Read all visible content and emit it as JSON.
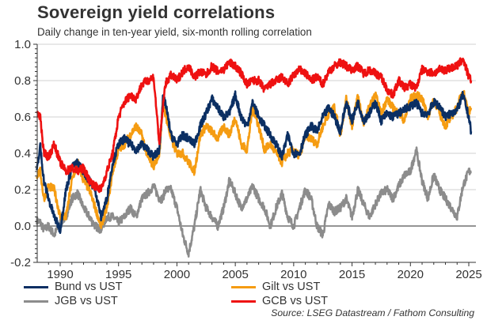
{
  "chart_data": {
    "type": "line",
    "title": "Sovereign yield correlations",
    "subtitle": "Daily change in ten-year yield, six-month rolling correlation",
    "xlabel": "",
    "ylabel": "",
    "xlim": [
      1988.0,
      2025.4
    ],
    "ylim": [
      -0.2,
      1.0
    ],
    "x_ticks": [
      1990,
      1995,
      2000,
      2005,
      2010,
      2015,
      2020,
      2025
    ],
    "y_ticks": [
      -0.2,
      0.0,
      0.2,
      0.4,
      0.6,
      0.8,
      1.0
    ],
    "y_tick_labels": [
      "-0.2",
      "0.0",
      "0.2",
      "0.4",
      "0.6",
      "0.8",
      "1.0"
    ],
    "grid": true,
    "legend_position": "bottom",
    "source": "Source: LSEG Datastream / Fathom Consulting",
    "x": [
      1988.0,
      1988.3,
      1988.6,
      1989.0,
      1989.5,
      1990.0,
      1990.5,
      1991.0,
      1991.5,
      1992.0,
      1992.5,
      1993.0,
      1993.5,
      1994.0,
      1994.5,
      1995.0,
      1995.5,
      1996.0,
      1996.5,
      1997.0,
      1997.5,
      1998.0,
      1998.5,
      1998.8,
      1999.0,
      1999.5,
      2000.0,
      2000.5,
      2001.0,
      2001.5,
      2002.0,
      2002.5,
      2003.0,
      2003.5,
      2004.0,
      2004.5,
      2005.0,
      2005.5,
      2006.0,
      2006.5,
      2007.0,
      2007.5,
      2008.0,
      2008.5,
      2009.0,
      2009.5,
      2010.0,
      2010.5,
      2011.0,
      2011.5,
      2012.0,
      2012.5,
      2013.0,
      2013.5,
      2014.0,
      2014.5,
      2015.0,
      2015.5,
      2016.0,
      2016.5,
      2017.0,
      2017.5,
      2018.0,
      2018.5,
      2019.0,
      2019.5,
      2020.0,
      2020.5,
      2021.0,
      2021.5,
      2022.0,
      2022.5,
      2023.0,
      2023.5,
      2024.0,
      2024.5,
      2025.0,
      2025.2
    ],
    "series": [
      {
        "name": "Bund vs UST",
        "color": "#0b2f63",
        "values": [
          0.3,
          0.44,
          0.25,
          0.15,
          0.05,
          -0.02,
          0.2,
          0.32,
          0.35,
          0.3,
          0.25,
          0.2,
          0.05,
          0.15,
          0.35,
          0.45,
          0.48,
          0.45,
          0.42,
          0.45,
          0.42,
          0.38,
          0.42,
          0.7,
          0.68,
          0.5,
          0.45,
          0.5,
          0.48,
          0.45,
          0.55,
          0.62,
          0.7,
          0.65,
          0.6,
          0.62,
          0.72,
          0.6,
          0.55,
          0.68,
          0.6,
          0.55,
          0.5,
          0.45,
          0.38,
          0.5,
          0.4,
          0.4,
          0.5,
          0.55,
          0.52,
          0.6,
          0.65,
          0.6,
          0.52,
          0.68,
          0.58,
          0.68,
          0.58,
          0.62,
          0.68,
          0.58,
          0.62,
          0.6,
          0.62,
          0.64,
          0.66,
          0.68,
          0.62,
          0.62,
          0.68,
          0.66,
          0.6,
          0.62,
          0.64,
          0.72,
          0.6,
          0.52
        ]
      },
      {
        "name": "Gilt vs UST",
        "color": "#f59c12",
        "values": [
          0.28,
          0.3,
          0.15,
          0.22,
          0.2,
          0.05,
          0.05,
          0.25,
          0.35,
          0.25,
          0.2,
          0.1,
          0.0,
          0.1,
          0.3,
          0.42,
          0.45,
          0.5,
          0.55,
          0.5,
          0.38,
          0.33,
          0.4,
          0.68,
          0.62,
          0.48,
          0.4,
          0.4,
          0.35,
          0.3,
          0.5,
          0.55,
          0.52,
          0.48,
          0.55,
          0.5,
          0.6,
          0.45,
          0.42,
          0.65,
          0.55,
          0.42,
          0.45,
          0.4,
          0.35,
          0.4,
          0.42,
          0.38,
          0.5,
          0.48,
          0.45,
          0.55,
          0.62,
          0.65,
          0.5,
          0.7,
          0.55,
          0.72,
          0.56,
          0.66,
          0.72,
          0.62,
          0.7,
          0.65,
          0.62,
          0.58,
          0.7,
          0.72,
          0.7,
          0.6,
          0.7,
          0.62,
          0.55,
          0.6,
          0.65,
          0.75,
          0.62,
          0.65
        ]
      },
      {
        "name": "JGB vs UST",
        "color": "#8c8c8c",
        "values": [
          0.03,
          0.02,
          -0.02,
          0.0,
          -0.05,
          0.02,
          0.05,
          0.15,
          0.18,
          0.1,
          0.05,
          0.0,
          -0.02,
          0.05,
          0.05,
          0.02,
          0.05,
          0.1,
          0.05,
          0.15,
          0.18,
          0.22,
          0.15,
          0.15,
          0.2,
          0.2,
          0.1,
          -0.05,
          -0.15,
          0.0,
          0.2,
          0.1,
          0.05,
          0.0,
          0.1,
          0.25,
          0.18,
          0.1,
          0.15,
          0.22,
          0.15,
          0.1,
          0.0,
          0.1,
          0.18,
          0.05,
          0.0,
          0.1,
          0.2,
          0.15,
          0.0,
          -0.05,
          0.12,
          0.08,
          0.1,
          0.15,
          0.05,
          0.2,
          0.12,
          0.05,
          0.12,
          0.18,
          0.2,
          0.15,
          0.22,
          0.28,
          0.3,
          0.42,
          0.25,
          0.15,
          0.28,
          0.2,
          0.15,
          0.1,
          0.05,
          0.22,
          0.3,
          0.3
        ]
      },
      {
        "name": "GCB vs UST",
        "color": "#ee1111",
        "values": [
          0.62,
          0.6,
          0.4,
          0.38,
          0.45,
          0.35,
          0.3,
          0.32,
          0.3,
          0.32,
          0.25,
          0.22,
          0.2,
          0.3,
          0.4,
          0.6,
          0.68,
          0.72,
          0.7,
          0.78,
          0.8,
          0.82,
          0.45,
          0.65,
          0.78,
          0.83,
          0.8,
          0.85,
          0.88,
          0.82,
          0.85,
          0.83,
          0.88,
          0.85,
          0.86,
          0.9,
          0.88,
          0.84,
          0.78,
          0.8,
          0.8,
          0.75,
          0.78,
          0.8,
          0.82,
          0.78,
          0.83,
          0.86,
          0.84,
          0.8,
          0.82,
          0.78,
          0.85,
          0.88,
          0.9,
          0.88,
          0.86,
          0.88,
          0.84,
          0.86,
          0.84,
          0.82,
          0.75,
          0.72,
          0.8,
          0.76,
          0.78,
          0.76,
          0.86,
          0.85,
          0.84,
          0.86,
          0.86,
          0.87,
          0.88,
          0.92,
          0.82,
          0.8
        ]
      }
    ]
  },
  "legend": {
    "items": [
      {
        "label": "Bund vs UST",
        "color": "#0b2f63"
      },
      {
        "label": "Gilt vs UST",
        "color": "#f59c12"
      },
      {
        "label": "JGB vs UST",
        "color": "#8c8c8c"
      },
      {
        "label": "GCB vs UST",
        "color": "#ee1111"
      }
    ]
  }
}
